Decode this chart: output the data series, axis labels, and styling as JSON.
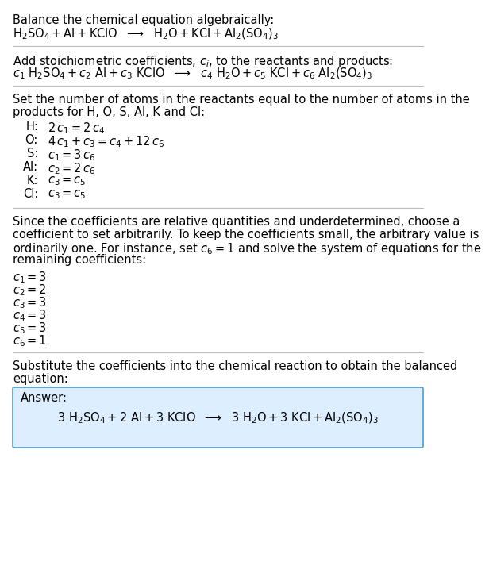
{
  "background_color": "#ffffff",
  "answer_box_color": "#dceeff",
  "answer_box_edge_color": "#5599cc",
  "font_size": 10.5,
  "sections": {
    "title": "Balance the chemical equation algebraically:",
    "eq1": "$\\mathrm{H_2SO_4 + Al + KClO\\ \\ \\longrightarrow\\ \\ H_2O + KCl + Al_2(SO_4)_3}$",
    "coeff_intro": "Add stoichiometric coefficients, $c_i$, to the reactants and products:",
    "eq2": "$c_1\\ \\mathrm{H_2SO_4} + c_2\\ \\mathrm{Al} + c_3\\ \\mathrm{KClO\\ \\ \\longrightarrow\\ \\ }c_4\\ \\mathrm{H_2O} + c_5\\ \\mathrm{KCl} + c_6\\ \\mathrm{Al_2(SO_4)_3}$",
    "atom_intro_1": "Set the number of atoms in the reactants equal to the number of atoms in the",
    "atom_intro_2": "products for H, O, S, Al, K and Cl:",
    "equations": [
      [
        "H:",
        "$2\\,c_1 = 2\\,c_4$"
      ],
      [
        "O:",
        "$4\\,c_1 + c_3 = c_4 + 12\\,c_6$"
      ],
      [
        "S:",
        "$c_1 = 3\\,c_6$"
      ],
      [
        "Al:",
        "$c_2 = 2\\,c_6$"
      ],
      [
        "K:",
        "$c_3 = c_5$"
      ],
      [
        "Cl:",
        "$c_3 = c_5$"
      ]
    ],
    "since_para": [
      "Since the coefficients are relative quantities and underdetermined, choose a",
      "coefficient to set arbitrarily. To keep the coefficients small, the arbitrary value is",
      "ordinarily one. For instance, set $c_6 = 1$ and solve the system of equations for the",
      "remaining coefficients:"
    ],
    "coeff_list": [
      "$c_1 = 3$",
      "$c_2 = 2$",
      "$c_3 = 3$",
      "$c_4 = 3$",
      "$c_5 = 3$",
      "$c_6 = 1$"
    ],
    "subst_1": "Substitute the coefficients into the chemical reaction to obtain the balanced",
    "subst_2": "equation:",
    "answer_label": "Answer:",
    "answer_eq": "$3\\ \\mathrm{H_2SO_4} + 2\\ \\mathrm{Al} + 3\\ \\mathrm{KClO\\ \\ \\longrightarrow\\ \\ 3\\ H_2O + 3\\ KCl + Al_2(SO_4)_3}$"
  }
}
